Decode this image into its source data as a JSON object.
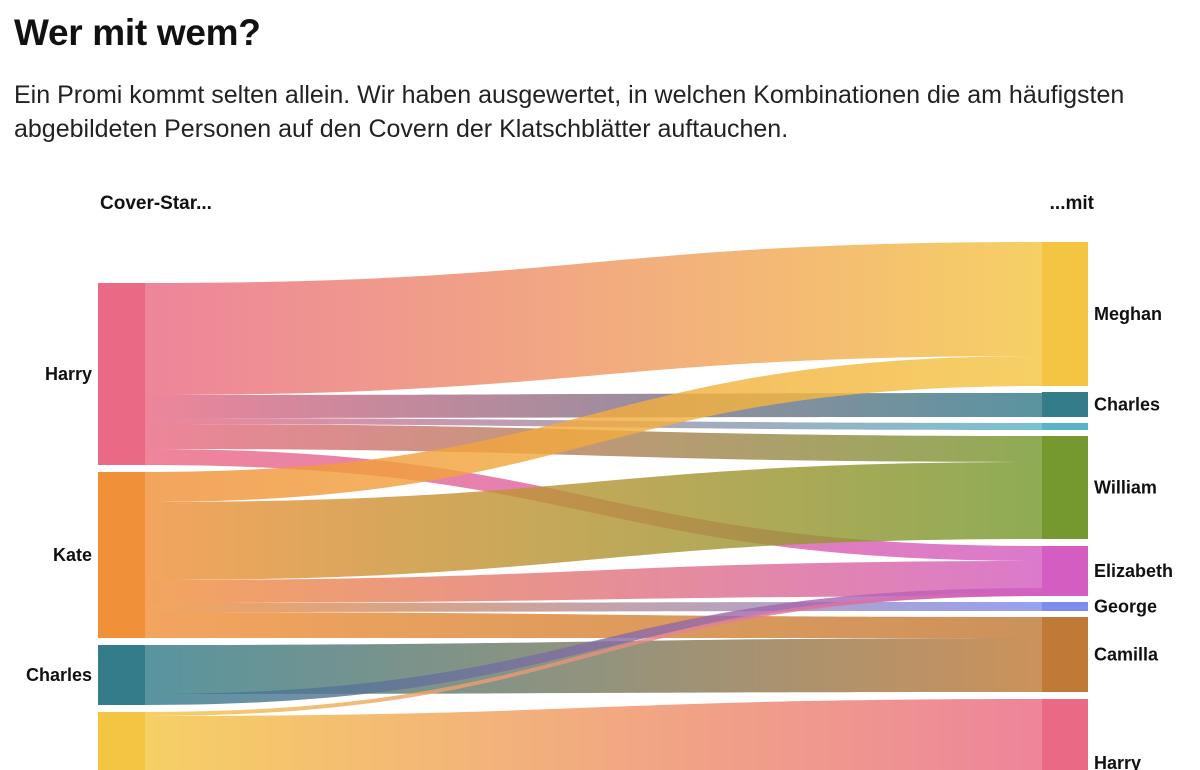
{
  "header": {
    "title": "Wer mit wem?",
    "subtitle": "Ein Promi kommt selten allein. Wir haben ausgewertet, in welchen Kombinationen die am häufigsten abgebildeten Personen auf den Covern der Klatschblätter auftauchen."
  },
  "diagram": {
    "left_heading": "Cover-Star...",
    "right_heading": "...mit",
    "left_nodes": [
      {
        "id": "L_harry",
        "label": "Harry",
        "color": "#EA6A85"
      },
      {
        "id": "L_kate",
        "label": "Kate",
        "color": "#F0913A"
      },
      {
        "id": "L_charles",
        "label": "Charles",
        "color": "#347C8A"
      },
      {
        "id": "L_meghan",
        "label": "",
        "color": "#F4C543"
      }
    ],
    "right_nodes": [
      {
        "id": "R_meghan",
        "label": "Meghan",
        "color": "#F4C543"
      },
      {
        "id": "R_charles",
        "label": "Charles",
        "color": "#347C8A"
      },
      {
        "id": "R_teal",
        "label": "",
        "color": "#5AB4C8"
      },
      {
        "id": "R_william",
        "label": "William",
        "color": "#76992F"
      },
      {
        "id": "R_elizabeth",
        "label": "Elizabeth",
        "color": "#D35DC0"
      },
      {
        "id": "R_george",
        "label": "George",
        "color": "#7E8CEE"
      },
      {
        "id": "R_camilla",
        "label": "Camilla",
        "color": "#C07A37"
      },
      {
        "id": "R_harry",
        "label": "Harry",
        "color": "#EA6A85"
      }
    ]
  }
}
